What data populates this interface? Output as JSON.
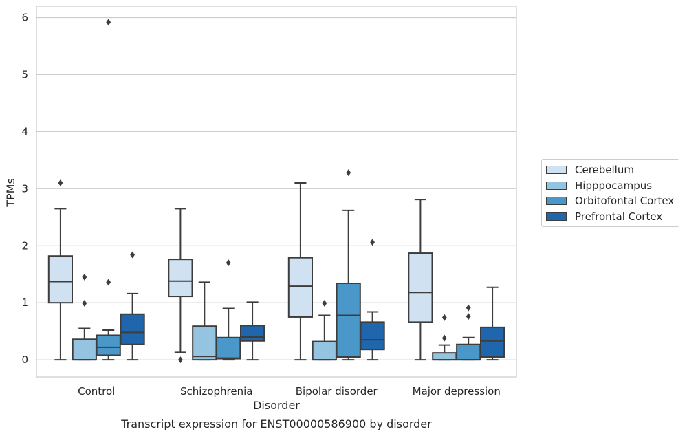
{
  "chart_data": {
    "type": "boxplot",
    "xlabel": "Disorder",
    "ylabel": "TPMs",
    "title": "Transcript expression for ENST00000586900 by disorder",
    "ylim": [
      -0.3,
      6.2
    ],
    "yticks": [
      0,
      1,
      2,
      3,
      4,
      5,
      6
    ],
    "yticklabels": [
      "0",
      "1",
      "2",
      "3",
      "4",
      "5",
      "6"
    ],
    "grid": true,
    "legend_position": "right",
    "categories": [
      "Control",
      "Schizophrenia",
      "Bipolar disorder",
      "Major depression"
    ],
    "series": [
      {
        "name": "Cerebellum",
        "color": "#d0e1f2",
        "boxes": [
          {
            "whislo": 0.0,
            "q1": 1.0,
            "med": 1.37,
            "q3": 1.82,
            "whishi": 2.65,
            "fliers": [
              3.1
            ]
          },
          {
            "whislo": 0.13,
            "q1": 1.11,
            "med": 1.38,
            "q3": 1.76,
            "whishi": 2.65,
            "fliers": [
              0.0
            ]
          },
          {
            "whislo": 0.0,
            "q1": 0.75,
            "med": 1.29,
            "q3": 1.79,
            "whishi": 3.1,
            "fliers": []
          },
          {
            "whislo": 0.0,
            "q1": 0.66,
            "med": 1.18,
            "q3": 1.87,
            "whishi": 2.81,
            "fliers": []
          }
        ]
      },
      {
        "name": "Hipppocampus",
        "color": "#94c4df",
        "boxes": [
          {
            "whislo": 0.0,
            "q1": 0.0,
            "med": 0.0,
            "q3": 0.36,
            "whishi": 0.55,
            "fliers": [
              1.45,
              0.99
            ]
          },
          {
            "whislo": 0.0,
            "q1": 0.0,
            "med": 0.06,
            "q3": 0.59,
            "whishi": 1.36,
            "fliers": []
          },
          {
            "whislo": 0.0,
            "q1": 0.0,
            "med": 0.0,
            "q3": 0.32,
            "whishi": 0.78,
            "fliers": [
              0.99
            ]
          },
          {
            "whislo": 0.0,
            "q1": 0.0,
            "med": 0.0,
            "q3": 0.12,
            "whishi": 0.26,
            "fliers": [
              0.74,
              0.38
            ]
          }
        ]
      },
      {
        "name": "Orbitofontal Cortex",
        "color": "#4a98c9",
        "boxes": [
          {
            "whislo": 0.0,
            "q1": 0.08,
            "med": 0.22,
            "q3": 0.43,
            "whishi": 0.52,
            "fliers": [
              5.92,
              1.36
            ]
          },
          {
            "whislo": 0.0,
            "q1": 0.02,
            "med": 0.03,
            "q3": 0.39,
            "whishi": 0.9,
            "fliers": [
              1.7
            ]
          },
          {
            "whislo": 0.0,
            "q1": 0.05,
            "med": 0.78,
            "q3": 1.34,
            "whishi": 2.62,
            "fliers": [
              3.28
            ]
          },
          {
            "whislo": 0.0,
            "q1": 0.0,
            "med": 0.0,
            "q3": 0.27,
            "whishi": 0.39,
            "fliers": [
              0.91,
              0.76
            ]
          }
        ]
      },
      {
        "name": "Prefrontal Cortex",
        "color": "#2066ac",
        "boxes": [
          {
            "whislo": 0.0,
            "q1": 0.27,
            "med": 0.48,
            "q3": 0.8,
            "whishi": 1.16,
            "fliers": [
              1.84
            ]
          },
          {
            "whislo": 0.0,
            "q1": 0.33,
            "med": 0.4,
            "q3": 0.6,
            "whishi": 1.01,
            "fliers": []
          },
          {
            "whislo": 0.0,
            "q1": 0.18,
            "med": 0.35,
            "q3": 0.66,
            "whishi": 0.84,
            "fliers": [
              2.06
            ]
          },
          {
            "whislo": 0.0,
            "q1": 0.05,
            "med": 0.33,
            "q3": 0.57,
            "whishi": 1.27,
            "fliers": []
          }
        ]
      }
    ]
  }
}
